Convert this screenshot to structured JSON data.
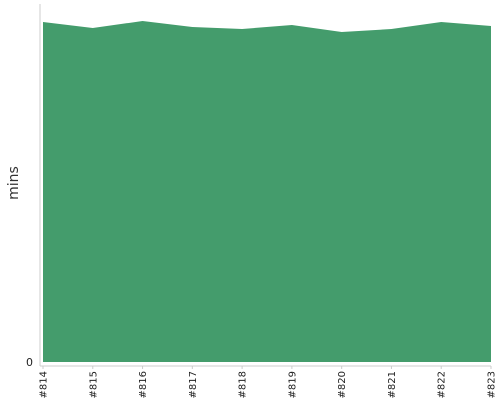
{
  "chart_data": {
    "type": "area",
    "title": "",
    "xlabel": "",
    "ylabel": "mins",
    "categories": [
      "#814",
      "#815",
      "#816",
      "#817",
      "#818",
      "#819",
      "#820",
      "#821",
      "#822",
      "#823"
    ],
    "series": [
      {
        "values": [
          34.0,
          33.4,
          34.1,
          33.5,
          33.3,
          33.7,
          33.0,
          33.3,
          34.0,
          33.6
        ],
        "color": "#449c6c"
      }
    ],
    "y_tick_labels": [
      "0"
    ],
    "ylim": [
      0,
      35.8
    ],
    "grid": false,
    "legend": "none"
  }
}
